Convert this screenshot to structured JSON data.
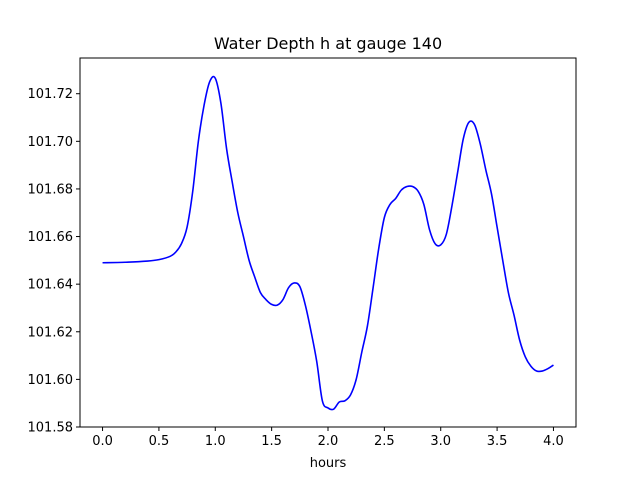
{
  "chart_data": {
    "type": "line",
    "title": "Water Depth h at gauge 140",
    "xlabel": "hours",
    "ylabel": "",
    "xlim": [
      -0.2,
      4.2
    ],
    "ylim": [
      101.58,
      101.735
    ],
    "grid": false,
    "xticks": [
      0.0,
      0.5,
      1.0,
      1.5,
      2.0,
      2.5,
      3.0,
      3.5,
      4.0
    ],
    "xtick_labels": [
      "0.0",
      "0.5",
      "1.0",
      "1.5",
      "2.0",
      "2.5",
      "3.0",
      "3.5",
      "4.0"
    ],
    "yticks": [
      101.58,
      101.6,
      101.62,
      101.64,
      101.66,
      101.68,
      101.7,
      101.72
    ],
    "ytick_labels": [
      "101.58",
      "101.60",
      "101.62",
      "101.64",
      "101.66",
      "101.68",
      "101.70",
      "101.72"
    ],
    "series": [
      {
        "color": "#0000ff",
        "x": [
          0.0,
          0.2,
          0.4,
          0.5,
          0.6,
          0.65,
          0.7,
          0.75,
          0.8,
          0.85,
          0.9,
          0.95,
          1.0,
          1.05,
          1.1,
          1.15,
          1.2,
          1.25,
          1.3,
          1.35,
          1.4,
          1.45,
          1.5,
          1.55,
          1.6,
          1.65,
          1.7,
          1.75,
          1.8,
          1.85,
          1.9,
          1.95,
          2.0,
          2.05,
          2.1,
          2.15,
          2.2,
          2.25,
          2.3,
          2.35,
          2.4,
          2.45,
          2.5,
          2.55,
          2.6,
          2.65,
          2.7,
          2.75,
          2.8,
          2.85,
          2.9,
          2.95,
          3.0,
          3.05,
          3.1,
          3.15,
          3.2,
          3.25,
          3.3,
          3.35,
          3.4,
          3.45,
          3.5,
          3.55,
          3.6,
          3.65,
          3.7,
          3.75,
          3.8,
          3.85,
          3.9,
          3.95,
          4.0
        ],
        "y": [
          101.649,
          101.6492,
          101.6497,
          101.6503,
          101.6517,
          101.6535,
          101.657,
          101.664,
          101.679,
          101.7,
          101.715,
          101.725,
          101.7265,
          101.716,
          101.697,
          101.683,
          101.67,
          101.66,
          101.65,
          101.643,
          101.6365,
          101.6335,
          101.6315,
          101.6312,
          101.6335,
          101.6385,
          101.6405,
          101.639,
          101.631,
          101.62,
          101.6075,
          101.591,
          101.588,
          101.5875,
          101.5905,
          101.591,
          101.5935,
          101.6,
          101.6115,
          101.6225,
          101.6385,
          101.655,
          101.668,
          101.6735,
          101.676,
          101.6795,
          101.681,
          101.681,
          101.679,
          101.6735,
          101.663,
          101.657,
          101.6565,
          101.661,
          101.673,
          101.687,
          101.701,
          101.708,
          101.707,
          101.699,
          101.688,
          101.678,
          101.664,
          101.65,
          101.6365,
          101.627,
          101.6165,
          101.6095,
          101.6055,
          101.6035,
          101.6035,
          101.6045,
          101.606
        ]
      }
    ]
  }
}
